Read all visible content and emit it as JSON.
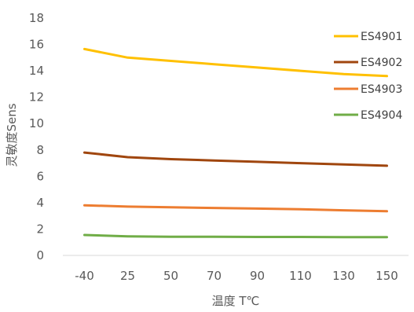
{
  "chart_data": {
    "type": "line",
    "categories": [
      "-40",
      "25",
      "50",
      "70",
      "90",
      "110",
      "130",
      "150"
    ],
    "series": [
      {
        "name": "ES4901",
        "color": "#FFC000",
        "values": [
          15.65,
          15.0,
          14.75,
          14.5,
          14.25,
          14.0,
          13.75,
          13.6
        ]
      },
      {
        "name": "ES4902",
        "color": "#A0460E",
        "values": [
          7.8,
          7.45,
          7.3,
          7.2,
          7.1,
          7.0,
          6.9,
          6.8
        ]
      },
      {
        "name": "ES4903",
        "color": "#ED7D31",
        "values": [
          3.8,
          3.7,
          3.65,
          3.6,
          3.55,
          3.5,
          3.42,
          3.35
        ]
      },
      {
        "name": "ES4904",
        "color": "#70AD47",
        "values": [
          1.55,
          1.45,
          1.42,
          1.42,
          1.4,
          1.4,
          1.38,
          1.38
        ]
      }
    ],
    "yticks": [
      "0",
      "2",
      "4",
      "6",
      "8",
      "10",
      "12",
      "14",
      "16",
      "18"
    ],
    "ylim": [
      0,
      18
    ],
    "xlabel": "温度 T℃",
    "ylabel": "灵敏度Sens",
    "grid": false,
    "legend_position": "right"
  }
}
